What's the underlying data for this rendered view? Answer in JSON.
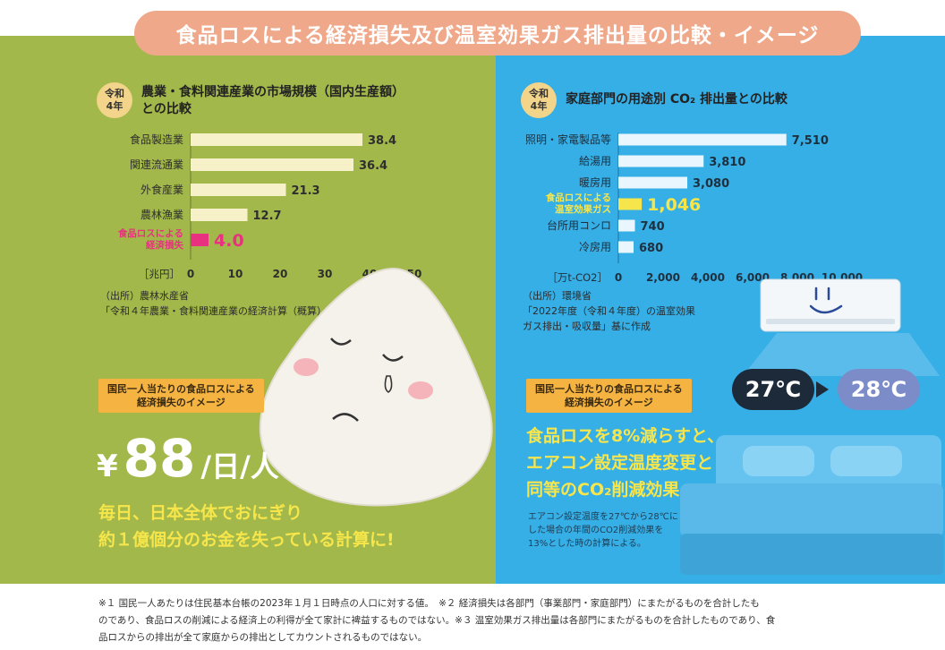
{
  "title": "食品ロスによる経済損失及び温室効果ガス排出量の比較・イメージ",
  "left": {
    "badge": [
      "令和",
      "4年"
    ],
    "heading": [
      "農業・食料関連産業の市場規模（国内生産額）",
      "との比較"
    ],
    "unit_label": "［兆円］",
    "source": [
      "（出所）農林水産省",
      "「令和４年農業・食料関連産業の経済計算（概算）」を基に作成"
    ],
    "tag": [
      "国民一人当たりの食品ロスによる",
      "経済損失のイメージ"
    ],
    "amount": {
      "yen": "¥",
      "value": "88",
      "unit": "/日/人"
    },
    "message": [
      "毎日、日本全体でおにぎり",
      "約１億個分のお金を失っている計算に!"
    ]
  },
  "right": {
    "badge": [
      "令和",
      "4年"
    ],
    "heading": "家庭部門の用途別 CO₂ 排出量との比較",
    "unit_label": "［万t-CO2］",
    "source": [
      "（出所）環境省",
      "「2022年度（令和４年度）の温室効果",
      "ガス排出・吸収量」基に作成"
    ],
    "tag": [
      "国民一人当たりの食品ロスによる",
      "経済損失のイメージ"
    ],
    "temp_from": "27℃",
    "temp_to": "28℃",
    "message": [
      "食品ロスを8%減らすと、",
      "エアコン設定温度変更と",
      "同等のCO₂削減効果"
    ],
    "note": [
      "エアコン設定温度を27℃から28℃に",
      "した場合の年間のCO2削減効果を",
      "13%とした時の計算による。"
    ]
  },
  "footnotes": [
    "※１ 国民一人あたりは住民基本台帳の2023年１月１日時点の人口に対する値。　※２ 経済損失は各部門（事業部門・家庭部門）にまたがるものを合計したも",
    "のであり、食品ロスの削減による経済上の利得が全て家計に裨益するものではない。※３ 温室効果ガス排出量は各部門にまたがるものを合計したものであり、食",
    "品ロスからの排出が全て家庭からの排出としてカウントされるものではない。"
  ],
  "colors": {
    "left_bg": "#a2b84a",
    "right_bg": "#36aee6",
    "title_pill": "#f0a88a",
    "bar_normal": "#f6f1c9",
    "bar_left_highlight": "#e8327f",
    "bar_right_normal": "#e9f6fd",
    "bar_right_highlight": "#f7e64b",
    "tag": "#f5b342"
  },
  "chart_data": [
    {
      "type": "bar",
      "orientation": "horizontal",
      "categories": [
        "食品製造業",
        "関連流通業",
        "外食産業",
        "農林漁業",
        "食品ロスによる経済損失"
      ],
      "category_lines": [
        [
          "食品製造業"
        ],
        [
          "関連流通業"
        ],
        [
          "外食産業"
        ],
        [
          "農林漁業"
        ],
        [
          "食品ロスによる",
          "経済損失"
        ]
      ],
      "values": [
        38.4,
        36.4,
        21.3,
        12.7,
        4.0
      ],
      "value_labels": [
        "38.4",
        "36.4",
        "21.3",
        "12.7",
        "4.0"
      ],
      "highlight_index": 4,
      "xlim": [
        0,
        50
      ],
      "xticks": [
        0,
        10,
        20,
        30,
        40,
        50
      ],
      "xtick_labels": [
        "0",
        "10",
        "20",
        "30",
        "40",
        "50"
      ],
      "xunit": "［兆円］"
    },
    {
      "type": "bar",
      "orientation": "horizontal",
      "categories": [
        "照明・家電製品等",
        "給湯用",
        "暖房用",
        "食品ロスによる温室効果ガス",
        "台所用コンロ",
        "冷房用"
      ],
      "category_lines": [
        [
          "照明・家電製品等"
        ],
        [
          "給湯用"
        ],
        [
          "暖房用"
        ],
        [
          "食品ロスによる",
          "温室効果ガス"
        ],
        [
          "台所用コンロ"
        ],
        [
          "冷房用"
        ]
      ],
      "values": [
        7510,
        3810,
        3080,
        1046,
        740,
        680
      ],
      "value_labels": [
        "7,510",
        "3,810",
        "3,080",
        "1,046",
        "740",
        "680"
      ],
      "highlight_index": 3,
      "xlim": [
        0,
        10000
      ],
      "xticks": [
        0,
        2000,
        4000,
        6000,
        8000,
        10000
      ],
      "xtick_labels": [
        "0",
        "2,000",
        "4,000",
        "6,000",
        "8,000",
        "10,000"
      ],
      "xunit": "［万t-CO2］"
    }
  ]
}
